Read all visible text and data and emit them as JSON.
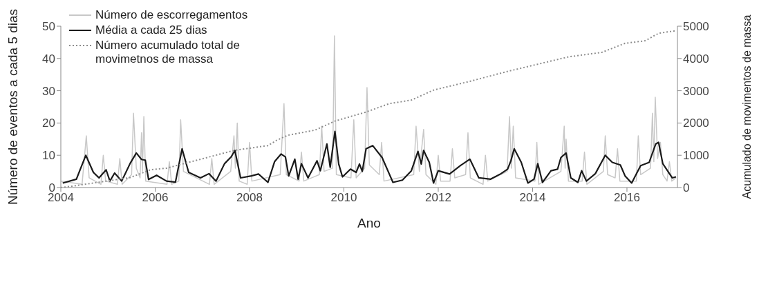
{
  "chart_data": {
    "type": "line",
    "xlabel": "Ano",
    "ylabel": "Número de eventos a cada 5 dias",
    "y2label": "Acumulado de movimentos de massa",
    "xlim": [
      2004,
      2017.07
    ],
    "xticks": [
      2004,
      2006,
      2008,
      2010,
      2012,
      2014,
      2016
    ],
    "ylim": [
      0,
      50
    ],
    "yticks": [
      0,
      10,
      20,
      30,
      40,
      50
    ],
    "y2lim": [
      0,
      5000
    ],
    "y2ticks": [
      0,
      1000,
      2000,
      3000,
      4000,
      5000
    ],
    "grid": false,
    "legend": "top left",
    "marker": "none",
    "series": [
      {
        "name": "Número de escorregamentos",
        "color": "#c8c8c8",
        "line_style": "solid",
        "x": [
          2004.0,
          2004.45,
          2004.54,
          2004.6,
          2004.85,
          2004.9,
          2004.95,
          2005.2,
          2005.25,
          2005.3,
          2005.5,
          2005.54,
          2005.6,
          2005.68,
          2005.71,
          2005.73,
          2005.76,
          2005.8,
          2006.25,
          2006.3,
          2006.35,
          2006.5,
          2006.54,
          2006.6,
          2007.15,
          2007.2,
          2007.25,
          2007.6,
          2007.67,
          2007.7,
          2007.74,
          2007.78,
          2007.95,
          2008.0,
          2008.05,
          2008.65,
          2008.73,
          2008.78,
          2009.05,
          2009.1,
          2009.15,
          2009.48,
          2009.53,
          2009.58,
          2009.76,
          2009.8,
          2009.84,
          2010.15,
          2010.21,
          2010.26,
          2010.44,
          2010.49,
          2010.54,
          2010.75,
          2010.8,
          2010.85,
          2011.48,
          2011.53,
          2011.6,
          2011.69,
          2011.74,
          2011.95,
          2012.0,
          2012.05,
          2012.25,
          2012.3,
          2012.35,
          2012.58,
          2012.63,
          2012.68,
          2012.95,
          2013.0,
          2013.05,
          2013.46,
          2013.51,
          2013.55,
          2013.59,
          2013.64,
          2014.05,
          2014.09,
          2014.13,
          2014.6,
          2014.67,
          2014.69,
          2014.71,
          2014.76,
          2015.05,
          2015.1,
          2015.15,
          2015.5,
          2015.54,
          2015.59,
          2015.75,
          2015.8,
          2015.85,
          2016.2,
          2016.24,
          2016.29,
          2016.5,
          2016.54,
          2016.57,
          2016.6,
          2016.65,
          2016.71,
          2016.76,
          2016.85,
          2016.9,
          2016.95,
          2017.04
        ],
        "values": [
          2,
          1,
          16,
          3,
          1,
          10,
          2,
          1,
          9,
          1,
          4,
          23,
          6,
          3,
          17,
          5,
          22,
          2,
          1,
          8,
          1,
          2,
          21,
          5,
          1,
          9,
          1,
          5,
          16,
          6,
          20,
          2,
          1,
          14,
          2,
          4,
          26,
          4,
          2,
          11,
          2,
          4,
          19,
          5,
          6,
          47,
          4,
          3,
          21,
          3,
          6,
          31,
          7,
          4,
          14,
          2,
          4,
          19,
          5,
          18,
          4,
          1,
          10,
          2,
          2,
          12,
          3,
          4,
          17,
          3,
          1,
          10,
          2,
          5,
          22,
          6,
          19,
          3,
          2,
          14,
          1,
          5,
          19,
          6,
          15,
          2,
          2,
          11,
          1,
          5,
          16,
          4,
          3,
          12,
          2,
          2,
          16,
          4,
          6,
          23,
          8,
          28,
          9,
          14,
          4,
          2,
          8,
          2,
          3
        ]
      },
      {
        "name": "Média a cada 25 dias",
        "color": "#1a1a1a",
        "line_style": "solid",
        "x": [
          2004.04,
          2004.33,
          2004.53,
          2004.69,
          2004.81,
          2004.96,
          2005.04,
          2005.14,
          2005.29,
          2005.47,
          2005.6,
          2005.71,
          2005.79,
          2005.86,
          2006.03,
          2006.24,
          2006.43,
          2006.57,
          2006.71,
          2006.96,
          2007.14,
          2007.29,
          2007.47,
          2007.61,
          2007.69,
          2007.81,
          2008.04,
          2008.19,
          2008.39,
          2008.53,
          2008.67,
          2008.76,
          2008.83,
          2008.96,
          2009.03,
          2009.1,
          2009.24,
          2009.43,
          2009.5,
          2009.64,
          2009.71,
          2009.81,
          2009.89,
          2009.97,
          2010.14,
          2010.26,
          2010.33,
          2010.39,
          2010.47,
          2010.61,
          2010.81,
          2011.04,
          2011.24,
          2011.43,
          2011.57,
          2011.64,
          2011.69,
          2011.81,
          2011.9,
          2012.0,
          2012.24,
          2012.47,
          2012.67,
          2012.86,
          2013.11,
          2013.33,
          2013.47,
          2013.54,
          2013.61,
          2013.76,
          2013.9,
          2014.03,
          2014.11,
          2014.21,
          2014.39,
          2014.53,
          2014.6,
          2014.71,
          2014.81,
          2014.96,
          2015.04,
          2015.14,
          2015.33,
          2015.54,
          2015.69,
          2015.86,
          2015.96,
          2016.1,
          2016.29,
          2016.47,
          2016.61,
          2016.67,
          2016.76,
          2016.96,
          2017.04
        ],
        "values": [
          1.4,
          2.6,
          10,
          4.7,
          3,
          5.5,
          2,
          4.5,
          2,
          7.5,
          10.7,
          8.7,
          8.5,
          2.5,
          3.8,
          2,
          1.7,
          12,
          4.7,
          3,
          4.3,
          2,
          7.4,
          9.5,
          11.5,
          3,
          3.6,
          4.2,
          1.6,
          8,
          10.4,
          9.5,
          3.6,
          8.8,
          2.6,
          7.4,
          3,
          8.3,
          5.2,
          13.5,
          6.3,
          17.4,
          7.3,
          3.3,
          5.7,
          4.7,
          7.3,
          5,
          12,
          13,
          9.3,
          1.6,
          2.3,
          5.2,
          11.2,
          7.3,
          11.5,
          7.8,
          1.4,
          5.2,
          4.2,
          6.8,
          8.8,
          3,
          2.6,
          4.3,
          5.7,
          8.3,
          12,
          7.8,
          1.4,
          2.6,
          7.4,
          1.6,
          5.2,
          5.7,
          9.3,
          10.7,
          3,
          1.6,
          5.2,
          2,
          4.3,
          10,
          7.8,
          7,
          3.6,
          1.4,
          6.8,
          7.8,
          13.5,
          14,
          7.4,
          3,
          3.3
        ]
      },
      {
        "name": "Número acumulado total de movimetnos de massa",
        "color": "#8c8c8c",
        "line_style": "dotted",
        "axis": "y2",
        "x": [
          2004.0,
          2004.33,
          2005.47,
          2005.9,
          2006.24,
          2006.71,
          2007.67,
          2008.39,
          2008.57,
          2008.81,
          2009.39,
          2009.81,
          2010.47,
          2010.96,
          2011.43,
          2011.9,
          2012.61,
          2013.53,
          2014.76,
          2015.47,
          2015.96,
          2016.39,
          2016.67,
          2017.04
        ],
        "values": [
          0,
          60,
          310,
          550,
          600,
          780,
          1150,
          1300,
          1460,
          1620,
          1780,
          2060,
          2340,
          2600,
          2710,
          3020,
          3270,
          3620,
          4050,
          4190,
          4470,
          4550,
          4780,
          4860
        ]
      }
    ]
  }
}
